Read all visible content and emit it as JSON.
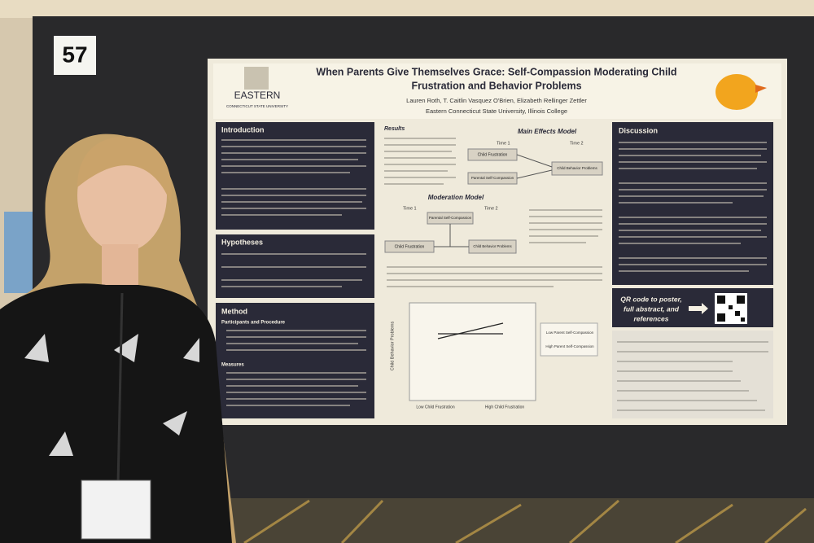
{
  "booth_number": "57",
  "poster": {
    "logo": {
      "name": "EASTERN",
      "subtitle": "CONNECTICUT STATE UNIVERSITY"
    },
    "title_lines": [
      "When Parents Give Themselves Grace: Self-Compassion Moderating Child",
      "Frustration and Behavior Problems"
    ],
    "authors": "Lauren Roth, T. Caitlin Vasquez O'Brien, Elizabeth Rellinger Zettler",
    "affiliation": "Eastern Connecticut State University, Illinois College",
    "sections": {
      "introduction": "Introduction",
      "hypotheses": "Hypotheses",
      "method": "Method",
      "participants": "Participants and Procedure",
      "measures": "Measures",
      "results": "Results",
      "discussion": "Discussion"
    },
    "models": {
      "main_effects": "Main Effects Model",
      "moderation": "Moderation Model",
      "time1": "Time 1",
      "time2": "Time 2",
      "child_frustration": "Child Frustration",
      "parental_self_compassion": "Parental Self-Compassion",
      "child_behavior_problems": "Child Behavior Problems"
    },
    "figure": {
      "y_label": "Child Behavior Problems",
      "x_low": "Low Child Frustration",
      "x_high": "High Child Frustration",
      "legend_low": "Low Parent Self-Compassion",
      "legend_high": "High Parent Self-Compassion"
    },
    "qr_text_lines": [
      "QR code to poster,",
      "full abstract, and",
      "references"
    ]
  }
}
